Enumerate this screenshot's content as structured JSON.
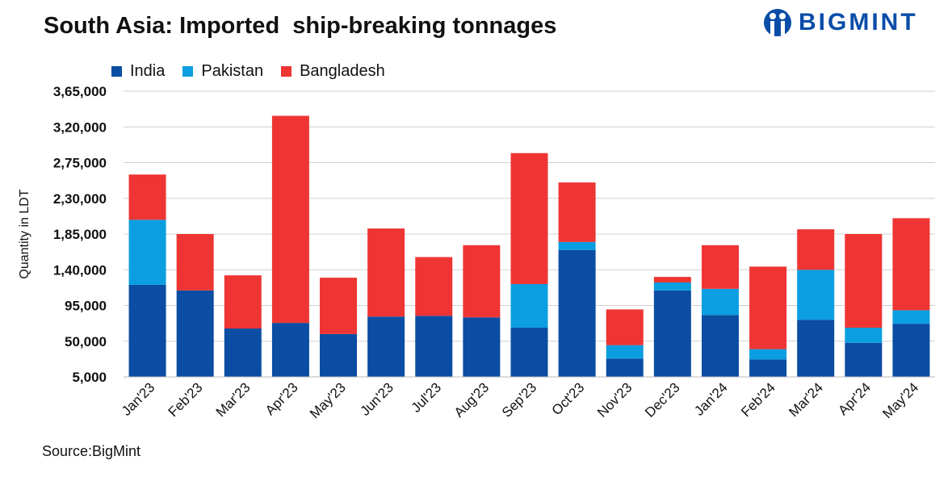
{
  "title": "South Asia: Imported  ship-breaking tonnages",
  "logo": "BIGMINT",
  "source": "Source:BigMint",
  "chart_data": {
    "type": "bar",
    "stacked": true,
    "title": "South Asia: Imported  ship-breaking tonnages",
    "xlabel": "",
    "ylabel": "Quantity in LDT",
    "ylim": [
      5000,
      365000
    ],
    "yticks": [
      5000,
      50000,
      95000,
      140000,
      185000,
      230000,
      275000,
      320000,
      365000
    ],
    "ytick_labels": [
      "5,000",
      "50,000",
      "95,000",
      "1,40,000",
      "1,85,000",
      "2,30,000",
      "2,75,000",
      "3,20,000",
      "3,65,000"
    ],
    "grid": true,
    "legend_position": "top-left",
    "categories": [
      "Jan'23",
      "Feb'23",
      "Mar'23",
      "Apr'23",
      "May'23",
      "Jun'23",
      "Jul'23",
      "Aug'23",
      "Sep'23",
      "Oct'23",
      "Nov'23",
      "Dec'23",
      "Jan'24",
      "Feb'24",
      "Mar'24",
      "Apr'24",
      "May'24"
    ],
    "series": [
      {
        "name": "India",
        "color": "#0a4da2",
        "values": [
          116000,
          109000,
          61000,
          68000,
          54000,
          76000,
          77000,
          75000,
          62000,
          160000,
          23000,
          109000,
          78000,
          22000,
          72000,
          43000,
          67000
        ]
      },
      {
        "name": "Pakistan",
        "color": "#0b9ee0",
        "values": [
          82000,
          0,
          0,
          0,
          0,
          0,
          0,
          0,
          55000,
          10000,
          17000,
          10000,
          33000,
          13000,
          63000,
          19000,
          17000
        ]
      },
      {
        "name": "Bangladesh",
        "color": "#ee3533",
        "values": [
          57000,
          71000,
          67000,
          261000,
          71000,
          111000,
          74000,
          91000,
          165000,
          75000,
          45000,
          7000,
          55000,
          104000,
          51000,
          118000,
          116000
        ]
      }
    ]
  }
}
